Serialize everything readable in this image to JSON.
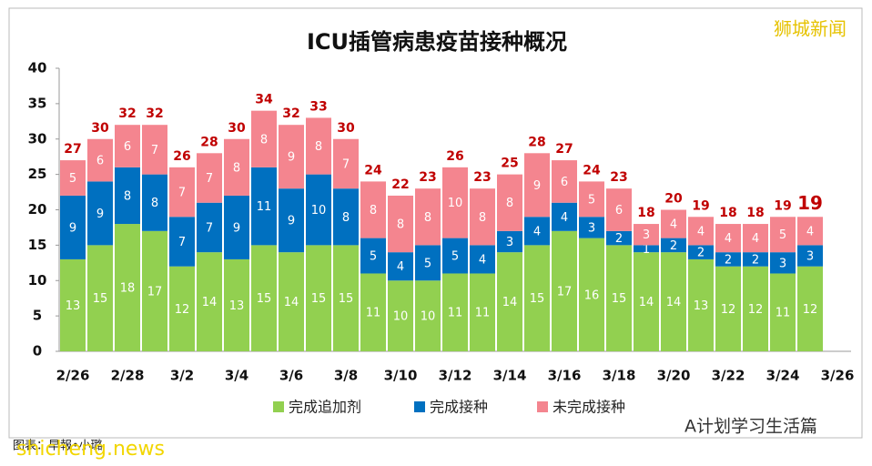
{
  "chart_data": {
    "type": "stacked_bar",
    "title": "ICU插管病患疫苗接种概况",
    "categories": [
      "2/26",
      null,
      "2/28",
      null,
      "3/2",
      null,
      "3/4",
      null,
      "3/6",
      null,
      "3/8",
      null,
      "3/10",
      null,
      "3/12",
      null,
      "3/14",
      null,
      "3/16",
      null,
      "3/18",
      null,
      "3/20",
      null,
      "3/22",
      null,
      "3/24",
      null,
      "3/26"
    ],
    "series": [
      {
        "name": "完成追加剂",
        "color": "#92d050",
        "values": [
          13,
          15,
          18,
          17,
          12,
          14,
          13,
          15,
          14,
          15,
          15,
          11,
          10,
          10,
          11,
          11,
          14,
          15,
          17,
          16,
          15,
          14,
          14,
          13,
          12,
          12,
          11,
          12,
          null
        ]
      },
      {
        "name": "完成接种",
        "color": "#0070c0",
        "values": [
          9,
          9,
          8,
          8,
          7,
          7,
          9,
          11,
          9,
          10,
          8,
          5,
          4,
          5,
          5,
          4,
          3,
          4,
          4,
          3,
          2,
          1,
          2,
          2,
          2,
          2,
          3,
          3,
          null
        ]
      },
      {
        "name": "未完成接种",
        "color": "#f4858f",
        "values": [
          5,
          6,
          6,
          7,
          7,
          7,
          8,
          8,
          9,
          8,
          7,
          8,
          8,
          8,
          10,
          8,
          8,
          9,
          6,
          5,
          6,
          3,
          4,
          4,
          4,
          4,
          5,
          4,
          null
        ]
      }
    ],
    "totals": [
      27,
      30,
      32,
      32,
      26,
      28,
      30,
      34,
      32,
      33,
      30,
      24,
      22,
      23,
      26,
      23,
      25,
      28,
      27,
      24,
      23,
      18,
      20,
      19,
      18,
      18,
      19,
      19,
      null
    ],
    "ylim": [
      0,
      40
    ],
    "yticks": [
      0,
      5,
      10,
      15,
      20,
      25,
      30,
      35,
      40
    ],
    "legend": "bottom",
    "annotations": {
      "watermark": "狮城新闻",
      "credit": "图表：早報•小璐",
      "site": "shicheng.news",
      "account": "A计划学习生活篇"
    }
  }
}
